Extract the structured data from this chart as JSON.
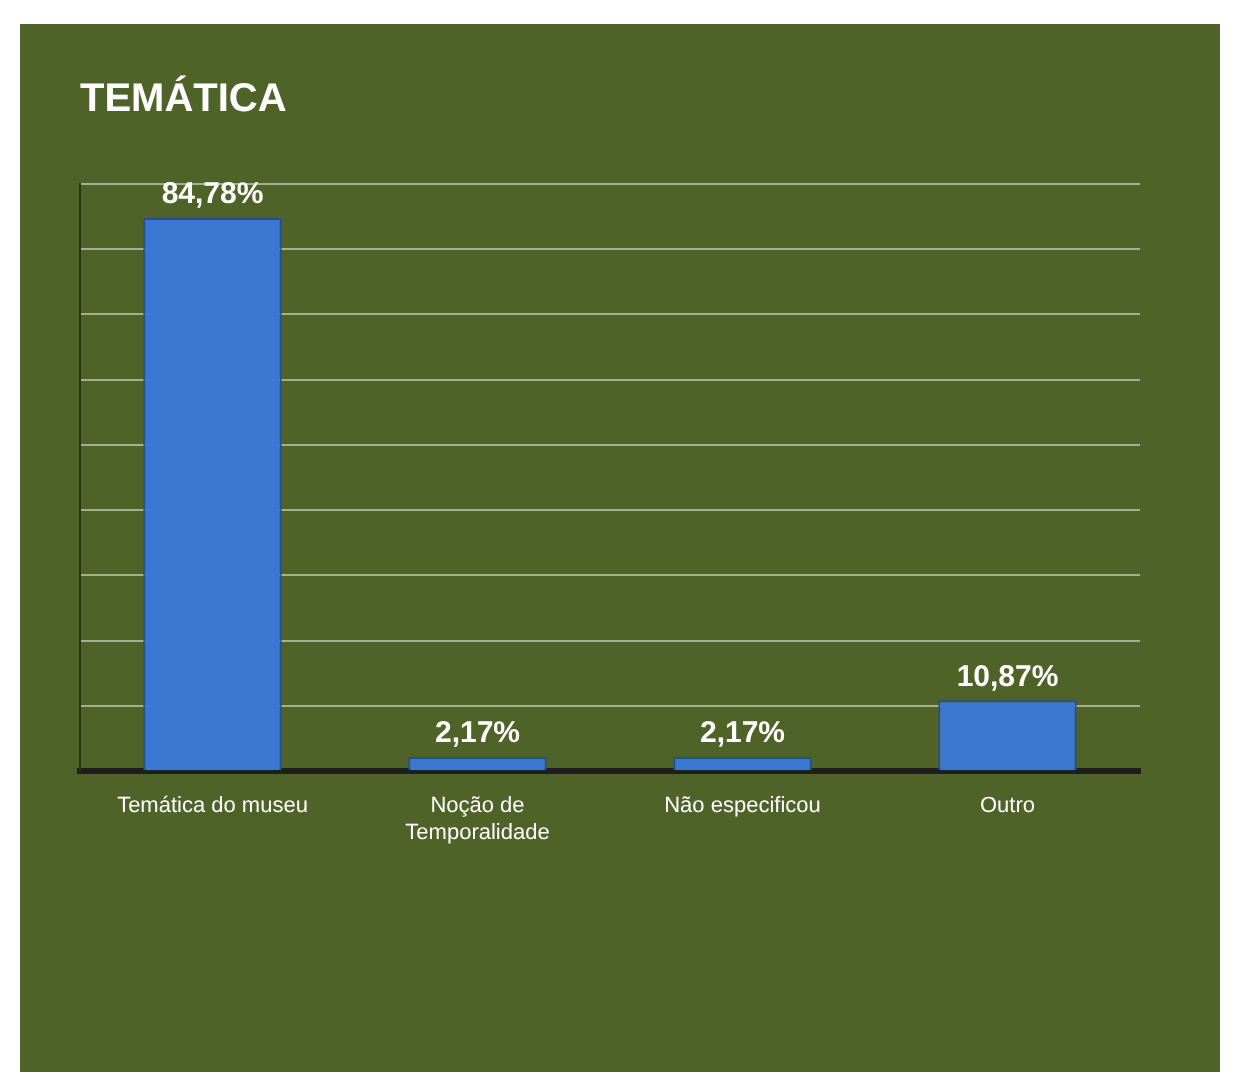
{
  "chart_data": {
    "type": "bar",
    "title": "TEMÁTICA",
    "categories": [
      "Temática do museu",
      "Noção de Temporalidade",
      "Não especificou",
      "Outro"
    ],
    "values": [
      84.78,
      2.17,
      2.17,
      10.87
    ],
    "value_labels": [
      "84,78%",
      "2,17%",
      "2,17%",
      "10,87%"
    ],
    "color": "#3b78d1",
    "ylim": [
      0,
      90
    ],
    "yticks": [
      {
        "value": 0,
        "label": null
      },
      {
        "value": 10,
        "label": null
      },
      {
        "value": 20,
        "label": null
      },
      {
        "value": 30,
        "label": null
      },
      {
        "value": 40,
        "label": null
      },
      {
        "value": 50,
        "label": null
      },
      {
        "value": 60,
        "label": null
      },
      {
        "value": 70,
        "label": null
      },
      {
        "value": 80,
        "label": null
      },
      {
        "value": 90,
        "label": null
      }
    ],
    "grid": "y",
    "legend": false,
    "tick_labels": "x"
  }
}
